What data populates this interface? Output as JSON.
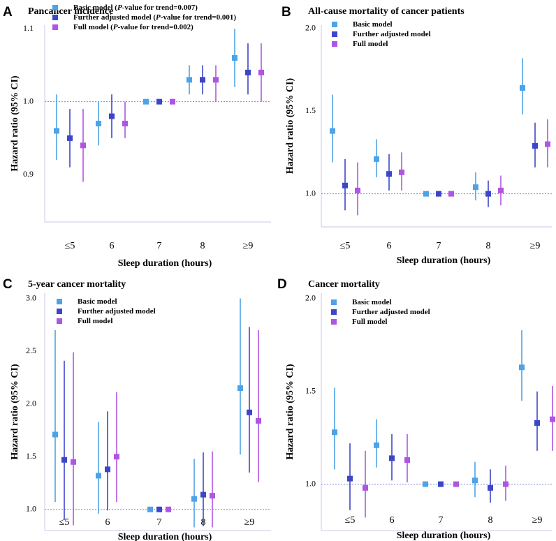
{
  "figure": {
    "series_colors": [
      "#4da3e6",
      "#3d46c9",
      "#b055e3"
    ],
    "reference_line_color": "#7b86dd",
    "axis_color": "#c9c7ee"
  },
  "chart_data": [
    {
      "panel": "A",
      "type": "forest",
      "title": "Pancancer incidence",
      "xlabel": "Sleep duration (hours)",
      "ylabel": "Hazard ratio (95% CI)",
      "categories": [
        "≤5",
        "6",
        "7",
        "8",
        "≥9"
      ],
      "yticks": [
        0.9,
        1.0,
        1.1
      ],
      "ytick_labels": [
        "0.9",
        "1.0",
        "1.1"
      ],
      "ylim": [
        0.835,
        1.105
      ],
      "reference": 1.0,
      "legend": [
        {
          "pre": "Basic model (",
          "italic": "P",
          "post": "-value for trend=0.007)"
        },
        {
          "pre": "Further adjusted model (",
          "italic": "P",
          "post": "-value for trend=0.001)"
        },
        {
          "pre": "Full model (",
          "italic": "P",
          "post": "-value for trend=0.002)"
        }
      ],
      "series": [
        {
          "name": "Basic model",
          "values": [
            0.96,
            0.97,
            1.0,
            1.03,
            1.06
          ],
          "lower": [
            0.92,
            0.94,
            1.0,
            1.01,
            1.02
          ],
          "upper": [
            1.01,
            1.0,
            1.0,
            1.05,
            1.1
          ]
        },
        {
          "name": "Further adjusted model",
          "values": [
            0.95,
            0.98,
            1.0,
            1.03,
            1.04
          ],
          "lower": [
            0.91,
            0.95,
            1.0,
            1.01,
            1.01
          ],
          "upper": [
            0.99,
            1.01,
            1.0,
            1.05,
            1.08
          ]
        },
        {
          "name": "Full model",
          "values": [
            0.94,
            0.97,
            1.0,
            1.03,
            1.04
          ],
          "lower": [
            0.89,
            0.95,
            1.0,
            1.0,
            1.0
          ],
          "upper": [
            0.99,
            1.0,
            1.0,
            1.05,
            1.08
          ]
        }
      ]
    },
    {
      "panel": "B",
      "type": "forest",
      "title": "All-cause mortality of cancer patients",
      "xlabel": "Sleep duration (hours)",
      "ylabel": "Hazard ratio (95% CI)",
      "categories": [
        "≤5",
        "6",
        "7",
        "8",
        "≥9"
      ],
      "yticks": [
        1.0,
        1.5,
        2.0
      ],
      "ytick_labels": [
        "1.0",
        "1.5",
        "2.0"
      ],
      "ylim": [
        0.8,
        2.02
      ],
      "reference": 1.0,
      "legend": [
        {
          "pre": "Basic model",
          "italic": "",
          "post": ""
        },
        {
          "pre": "Further adjusted model",
          "italic": "",
          "post": ""
        },
        {
          "pre": "Full model",
          "italic": "",
          "post": ""
        }
      ],
      "series": [
        {
          "name": "Basic model",
          "values": [
            1.38,
            1.21,
            1.0,
            1.04,
            1.64
          ],
          "lower": [
            1.19,
            1.1,
            1.0,
            0.96,
            1.48
          ],
          "upper": [
            1.6,
            1.33,
            1.0,
            1.13,
            1.82
          ]
        },
        {
          "name": "Further adjusted model",
          "values": [
            1.05,
            1.12,
            1.0,
            1.0,
            1.29
          ],
          "lower": [
            0.9,
            1.02,
            1.0,
            0.92,
            1.16
          ],
          "upper": [
            1.21,
            1.24,
            1.0,
            1.08,
            1.43
          ]
        },
        {
          "name": "Full model",
          "values": [
            1.02,
            1.13,
            1.0,
            1.02,
            1.3
          ],
          "lower": [
            0.87,
            1.02,
            1.0,
            0.93,
            1.16
          ],
          "upper": [
            1.19,
            1.25,
            1.0,
            1.11,
            1.45
          ]
        }
      ]
    },
    {
      "panel": "C",
      "type": "forest",
      "title": "5-year cancer mortality",
      "xlabel": "Sleep duration (hours)",
      "ylabel": "Hazard ratio (95% CI)",
      "categories": [
        "≤5",
        "6",
        "7",
        "8",
        "≥9"
      ],
      "yticks": [
        1.0,
        1.5,
        2.0,
        2.5,
        3.0
      ],
      "ytick_labels": [
        "1.0",
        "1.5",
        "2.0",
        "2.5",
        "3.0"
      ],
      "ylim": [
        0.8,
        3.05
      ],
      "reference": 1.0,
      "legend": [
        {
          "pre": "Basic model",
          "italic": "",
          "post": ""
        },
        {
          "pre": "Further adjusted model",
          "italic": "",
          "post": ""
        },
        {
          "pre": "Full model",
          "italic": "",
          "post": ""
        }
      ],
      "series": [
        {
          "name": "Basic model",
          "values": [
            1.71,
            1.32,
            1.0,
            1.1,
            2.15
          ],
          "lower": [
            1.07,
            0.96,
            1.0,
            0.83,
            1.52
          ],
          "upper": [
            2.7,
            1.83,
            1.0,
            1.48,
            3.0
          ]
        },
        {
          "name": "Further adjusted model",
          "values": [
            1.47,
            1.38,
            1.0,
            1.14,
            1.92
          ],
          "lower": [
            0.9,
            0.99,
            1.0,
            0.84,
            1.35
          ],
          "upper": [
            2.41,
            1.93,
            1.0,
            1.54,
            2.73
          ]
        },
        {
          "name": "Full model",
          "values": [
            1.45,
            1.5,
            1.0,
            1.13,
            1.84
          ],
          "lower": [
            0.85,
            1.07,
            1.0,
            0.83,
            1.26
          ],
          "upper": [
            2.49,
            2.11,
            1.0,
            1.55,
            2.7
          ]
        }
      ]
    },
    {
      "panel": "D",
      "type": "forest",
      "title": "Cancer mortality",
      "xlabel": "Sleep duration (hours)",
      "ylabel": "Hazard ratio (95% CI)",
      "categories": [
        "≤5",
        "6",
        "7",
        "8",
        "≥9"
      ],
      "yticks": [
        1.0,
        1.5,
        2.0
      ],
      "ytick_labels": [
        "1.0",
        "1.5",
        "2.0"
      ],
      "ylim": [
        0.75,
        2.03
      ],
      "reference": 1.0,
      "legend": [
        {
          "pre": "Basic model",
          "italic": "",
          "post": ""
        },
        {
          "pre": "Further adjusted model",
          "italic": "",
          "post": ""
        },
        {
          "pre": "Full model",
          "italic": "",
          "post": ""
        }
      ],
      "series": [
        {
          "name": "Basic model",
          "values": [
            1.28,
            1.21,
            1.0,
            1.02,
            1.63
          ],
          "lower": [
            1.08,
            1.09,
            1.0,
            0.93,
            1.45
          ],
          "upper": [
            1.52,
            1.35,
            1.0,
            1.12,
            1.83
          ]
        },
        {
          "name": "Further adjusted model",
          "values": [
            1.03,
            1.14,
            1.0,
            0.98,
            1.33
          ],
          "lower": [
            0.86,
            1.02,
            1.0,
            0.9,
            1.18
          ],
          "upper": [
            1.22,
            1.27,
            1.0,
            1.08,
            1.5
          ]
        },
        {
          "name": "Full model",
          "values": [
            0.98,
            1.13,
            1.0,
            1.0,
            1.35
          ],
          "lower": [
            0.82,
            1.01,
            1.0,
            0.91,
            1.18
          ],
          "upper": [
            1.18,
            1.27,
            1.0,
            1.1,
            1.53
          ]
        }
      ]
    }
  ]
}
